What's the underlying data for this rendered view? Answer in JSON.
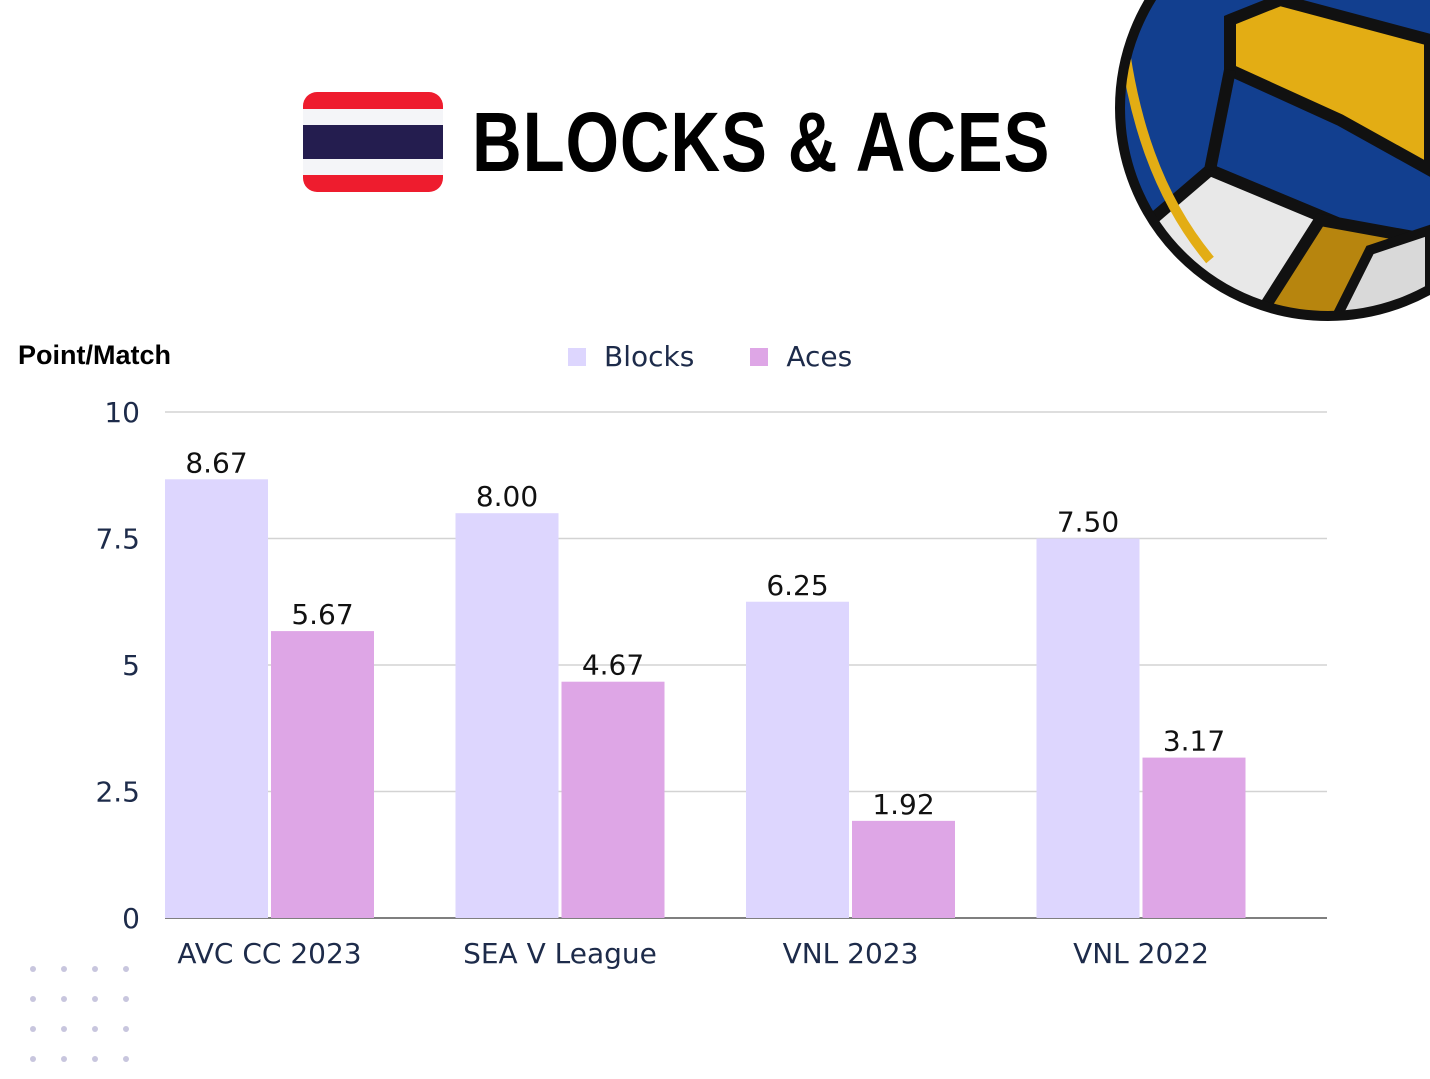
{
  "title": "BLOCKS & ACES",
  "flag_icon": "thailand-flag-icon",
  "decoration_icon": "volleyball-icon",
  "colors": {
    "blocks": "#ddd6fe",
    "aces": "#dea6e6",
    "axis_text": "#1d2b4a",
    "grid": "#d3d3d3"
  },
  "chart_data": {
    "type": "bar",
    "ylabel": "Point/Match",
    "xlabel": "",
    "ylim": [
      0,
      10
    ],
    "yticks": [
      0,
      2.5,
      5,
      7.5,
      10
    ],
    "ytick_labels": [
      "0",
      "2.5",
      "5",
      "7.5",
      "10"
    ],
    "categories": [
      "AVC CC 2023",
      "SEA V League",
      "VNL 2023",
      "VNL 2022"
    ],
    "series": [
      {
        "name": "Blocks",
        "values": [
          8.67,
          8.0,
          6.25,
          7.5
        ],
        "labels": [
          "8.67",
          "8.00",
          "6.25",
          "7.50"
        ]
      },
      {
        "name": "Aces",
        "values": [
          5.67,
          4.67,
          1.92,
          3.17
        ],
        "labels": [
          "5.67",
          "4.67",
          "1.92",
          "3.17"
        ]
      }
    ],
    "legend": "top-center",
    "grid": true
  }
}
